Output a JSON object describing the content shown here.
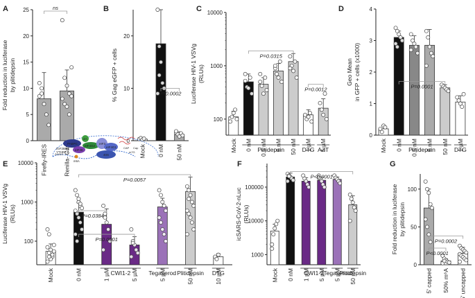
{
  "colors": {
    "black": "#111111",
    "dark_gray": "#888888",
    "mid_gray": "#aaaaaa",
    "light_gray": "#cccccc",
    "purple": "#6a2a86",
    "light_purple": "#9b72b8",
    "pval": "#8a8a8a"
  },
  "schematic": {
    "labels": [
      "AAAA",
      "PABPC",
      "4A",
      "eIF4G2",
      "eIF4E",
      "eIF3",
      "eIF4G1",
      "40S",
      "IGF2BP1",
      "YTHDF1",
      "m6A",
      "CAP",
      "m7G",
      "Cap"
    ]
  },
  "chart_data": [
    {
      "panel": "A",
      "type": "bar",
      "scale": "linear",
      "ylabel": [
        "Fold reduction in luciferase",
        "by plitidepsin"
      ],
      "ylim": [
        0,
        25
      ],
      "yticks": [
        0,
        5,
        10,
        15,
        20,
        25
      ],
      "categories": [
        "Firefly-IRES",
        "Renilla- Cap"
      ],
      "values": [
        8,
        9.5
      ],
      "errors": [
        5,
        4
      ],
      "points": [
        [
          11,
          10,
          7,
          5,
          3,
          8.5,
          9
        ],
        [
          23,
          12,
          10.5,
          9,
          8.5,
          8,
          7,
          6.5,
          5,
          14
        ]
      ],
      "colors": [
        "#aaaaaa",
        "#aaaaaa"
      ],
      "annotations": [
        {
          "text": "ns",
          "between": [
            0,
            1
          ],
          "y": 27
        }
      ]
    },
    {
      "panel": "B",
      "type": "bar",
      "scale": "linear",
      "ylabel": [
        "% Gag eGFP + cells"
      ],
      "ylim": [
        0,
        25
      ],
      "yticks": [
        0,
        10,
        20
      ],
      "categories": [
        "Mock",
        "0 nM",
        "50 nM"
      ],
      "values": [
        0.3,
        18.5,
        1.2
      ],
      "errors": [
        0.2,
        6.5,
        0.5
      ],
      "points": [
        [
          0.3,
          0.5,
          0.2,
          0.4
        ],
        [
          25,
          18,
          15,
          11,
          10,
          9,
          12.5
        ],
        [
          1.5,
          1.2,
          0.8,
          1.4,
          1.0,
          1.8
        ]
      ],
      "colors": [
        "#ffffff",
        "#111111",
        "#aaaaaa"
      ],
      "annotations": [
        {
          "text": "P=0.0002",
          "between": [
            1,
            2
          ],
          "y": 10
        }
      ]
    },
    {
      "panel": "C",
      "type": "bar",
      "scale": "log",
      "ylabel": [
        "Luciferase HIV-1 VSVg",
        "(RLUs)"
      ],
      "ylim": [
        50,
        10000
      ],
      "yticks": [
        100,
        1000,
        10000
      ],
      "categories": [
        "Mock",
        "0 nM",
        "0.5 nM",
        "5 nM",
        "50 nM",
        "1 µM",
        "1 µM"
      ],
      "values": [
        110,
        500,
        450,
        800,
        1200,
        120,
        160
      ],
      "errors": [
        30,
        200,
        150,
        300,
        500,
        30,
        80
      ],
      "points": [
        [
          90,
          110,
          130,
          150,
          100
        ],
        [
          520,
          400,
          380,
          600,
          300,
          700
        ],
        [
          500,
          420,
          300,
          600,
          350,
          700
        ],
        [
          900,
          700,
          600,
          1200,
          500,
          1000
        ],
        [
          1500,
          1000,
          800,
          1200,
          600,
          900
        ],
        [
          120,
          100,
          110,
          130,
          90
        ],
        [
          200,
          150,
          120,
          300,
          100
        ]
      ],
      "colors": [
        "#ffffff",
        "#111111",
        "#cccccc",
        "#cccccc",
        "#cccccc",
        "#ffffff",
        "#cccccc"
      ],
      "groups": [
        {
          "label": "Plitidepsin",
          "from": 1,
          "to": 4
        },
        {
          "label": "DTG",
          "from": 5,
          "to": 5
        },
        {
          "label": "AZT",
          "from": 6,
          "to": 6
        }
      ],
      "annotations": [
        {
          "text": "P=0.0315",
          "between": [
            1,
            4
          ],
          "y": 1900
        },
        {
          "text": "P=0.0012",
          "between": [
            5,
            6
          ],
          "y": 450
        }
      ]
    },
    {
      "panel": "D",
      "type": "bar",
      "scale": "linear",
      "ylabel": [
        "Geo Mean",
        "in GFP + cells (x1000)"
      ],
      "ylim": [
        0,
        4
      ],
      "yticks": [
        0,
        1,
        2,
        3,
        4
      ],
      "categories": [
        "Mock",
        "0 nM",
        "0.5 nM",
        "5 nM",
        "50 nM",
        "1 µM"
      ],
      "values": [
        0.2,
        3.1,
        2.85,
        2.85,
        1.5,
        1.05
      ],
      "errors": [
        0.1,
        0.2,
        0.3,
        0.5,
        0.1,
        0.2
      ],
      "points": [
        [
          0.2,
          0.1,
          0.3,
          0.25
        ],
        [
          3.4,
          3.3,
          3.2,
          3.1,
          3.0,
          2.9,
          2.8
        ],
        [
          3.2,
          3.0,
          2.9,
          2.8,
          2.6,
          2.7
        ],
        [
          3.3,
          3.1,
          2.8,
          2.6,
          2.5,
          2.2
        ],
        [
          1.6,
          1.55,
          1.5,
          1.45,
          1.4
        ],
        [
          1.2,
          1.1,
          1.0,
          0.9,
          1.3
        ]
      ],
      "colors": [
        "#ffffff",
        "#111111",
        "#888888",
        "#aaaaaa",
        "#cccccc",
        "#ffffff"
      ],
      "groups": [
        {
          "label": "Plitidepsin",
          "from": 1,
          "to": 4
        },
        {
          "label": "DTG",
          "from": 5,
          "to": 5
        }
      ],
      "annotations": [
        {
          "text": "P=0.0001",
          "between": [
            1,
            4
          ],
          "y": 1.7
        }
      ]
    },
    {
      "panel": "E",
      "type": "bar",
      "scale": "log",
      "ylabel": [
        "Luciferase HIV-1 VSVg",
        "(RLUs)"
      ],
      "ylim": [
        25,
        10000
      ],
      "yticks": [
        100,
        1000,
        10000
      ],
      "categories": [
        "Mock",
        "0 nM",
        "1 µM",
        "5 µM",
        "5 µM",
        "50 nM",
        "10 µM"
      ],
      "values": [
        55,
        550,
        270,
        80,
        750,
        1850,
        40
      ],
      "errors": [
        30,
        400,
        400,
        50,
        500,
        2500,
        8
      ],
      "points": [
        [
          30,
          50,
          60,
          40,
          80,
          200,
          150,
          35,
          45,
          55,
          70,
          40
        ],
        [
          2000,
          1500,
          1000,
          800,
          700,
          600,
          500,
          400,
          300,
          200,
          150,
          100,
          1200,
          900
        ],
        [
          800,
          400,
          300,
          200,
          100,
          60,
          500
        ],
        [
          200,
          100,
          80,
          60,
          50,
          40,
          90
        ],
        [
          2000,
          1500,
          1000,
          800,
          600,
          400,
          300,
          200,
          150,
          100
        ],
        [
          2500,
          2000,
          1500,
          1000,
          800,
          600,
          500,
          400,
          300,
          200,
          150,
          1200
        ],
        [
          40,
          35,
          45
        ]
      ],
      "colors": [
        "#ffffff",
        "#111111",
        "#6a2a86",
        "#6a2a86",
        "#9b72b8",
        "#cccccc",
        "#ffffff"
      ],
      "groups": [
        {
          "label": "CWI1-2",
          "from": 2,
          "to": 3
        },
        {
          "label": "Tegaserod",
          "from": 4,
          "to": 4
        },
        {
          "label": "Plitidepsin",
          "from": 5,
          "to": 5
        },
        {
          "label": "DTG",
          "from": 6,
          "to": 6
        }
      ],
      "annotations": [
        {
          "text": "P=0.0384",
          "between": [
            1,
            2
          ],
          "y": 600
        },
        {
          "text": "P=0.0001",
          "between": [
            1,
            3
          ],
          "y": 150
        },
        {
          "text": "P=0.0057",
          "between": [
            1,
            5
          ],
          "y": 5000
        }
      ]
    },
    {
      "panel": "F",
      "type": "bar",
      "scale": "log",
      "ylabel": [
        "icSARS-CoV-2-nLuc",
        "(RLUs)"
      ],
      "ylim": [
        500,
        500000
      ],
      "yticks": [
        1000,
        10000,
        100000
      ],
      "tick_labels": [
        "1000",
        "10000",
        "100000"
      ],
      "categories": [
        "Mock",
        "0 nM",
        "1 µM",
        "5 µM",
        "5 µM",
        "50 nM"
      ],
      "values": [
        5000,
        200000,
        150000,
        160000,
        170000,
        30000
      ],
      "errors": [
        3000,
        60000,
        40000,
        40000,
        30000,
        25000
      ],
      "points": [
        [
          2000,
          4000,
          6000,
          8000,
          10000,
          1500
        ],
        [
          250000,
          220000,
          200000,
          180000,
          160000,
          150000,
          210000
        ],
        [
          220000,
          180000,
          150000,
          120000,
          100000
        ],
        [
          220000,
          180000,
          150000,
          120000,
          100000,
          190000
        ],
        [
          220000,
          190000,
          170000,
          150000,
          130000
        ],
        [
          60000,
          45000,
          35000,
          25000,
          20000,
          10000
        ]
      ],
      "colors": [
        "#ffffff",
        "#111111",
        "#6a2a86",
        "#6a2a86",
        "#9b72b8",
        "#cccccc"
      ],
      "groups": [
        {
          "label": "CWI1-2",
          "from": 2,
          "to": 3
        },
        {
          "label": "Tegaserod",
          "from": 4,
          "to": 4
        },
        {
          "label": "Plitidepsin",
          "from": 5,
          "to": 5
        }
      ],
      "annotations": [
        {
          "text": "P<0.0001",
          "between": [
            1,
            5
          ],
          "y": 290000
        }
      ]
    },
    {
      "panel": "G",
      "type": "bar",
      "scale": "linear",
      "ylabel": [
        "Fold reduction in luciferase",
        "by plitidepsin"
      ],
      "ylim": [
        0,
        120
      ],
      "yticks": [
        0,
        50,
        100
      ],
      "categories": [
        "5' capped",
        "50% m⁶A",
        "5' uncapped"
      ],
      "values": [
        75,
        5,
        15
      ],
      "errors": [
        25,
        3,
        8
      ],
      "points": [
        [
          110,
          100,
          95,
          80,
          75,
          60,
          50,
          40,
          30
        ],
        [
          12,
          8,
          6,
          4,
          3,
          2,
          5
        ],
        [
          25,
          22,
          20,
          18,
          16,
          14,
          12,
          10,
          8,
          6,
          4
        ]
      ],
      "colors": [
        "#aaaaaa",
        "#ffffff",
        "#ffffff"
      ],
      "annotations": [
        {
          "text": "P<0.0001",
          "between": [
            0,
            1
          ],
          "y": 22
        },
        {
          "text": "P=0.0002",
          "between": [
            0,
            2
          ],
          "y": 38
        }
      ]
    }
  ]
}
